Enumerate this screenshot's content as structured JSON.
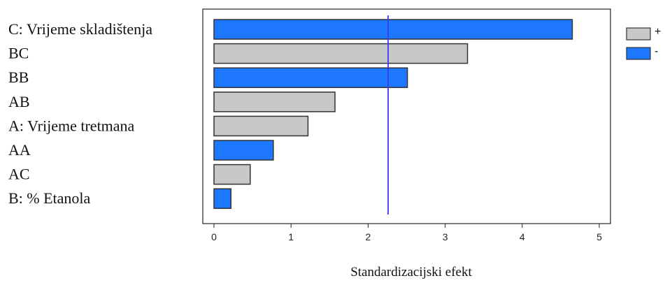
{
  "chart_data": {
    "type": "bar",
    "orientation": "horizontal",
    "categories": [
      "C: Vrijeme skladištenja",
      "BC",
      "BB",
      "AB",
      "A: Vrijeme tretmana",
      "AA",
      "AC",
      "B: % Etanola"
    ],
    "values": [
      4.65,
      3.29,
      2.51,
      1.57,
      1.22,
      0.77,
      0.47,
      0.22
    ],
    "signs": [
      "-",
      "+",
      "-",
      "+",
      "+",
      "-",
      "+",
      "-"
    ],
    "reference_line": 2.26,
    "xlim": [
      0,
      5
    ],
    "xticks": [
      "0",
      "1",
      "2",
      "3",
      "4",
      "5"
    ],
    "xlabel": "Standardizacijski efekt",
    "ylabel": "",
    "title": "",
    "legend": {
      "position": "top-right",
      "items": [
        {
          "label": "+",
          "color": "#c8c8c8"
        },
        {
          "label": "-",
          "color": "#1e78ff"
        }
      ]
    },
    "colors": {
      "positive": "#c8c8c8",
      "negative": "#1e78ff",
      "reference_line": "#3a3af0",
      "bar_stroke": "#333333"
    }
  }
}
